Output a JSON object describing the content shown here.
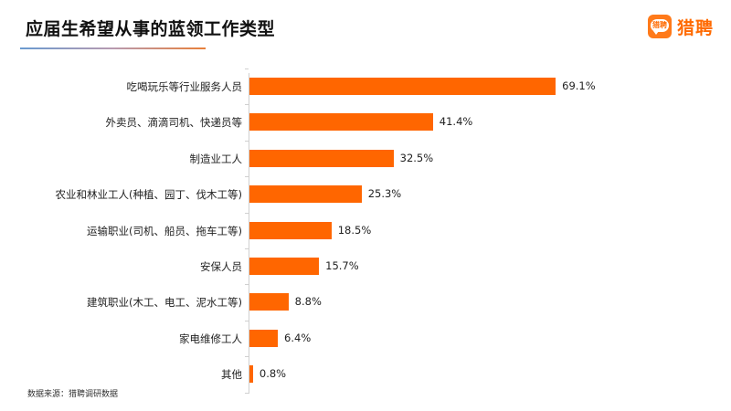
{
  "title": "应届生希望从事的蓝领工作类型",
  "logo": {
    "badge_text": "猎聘",
    "text": "猎聘",
    "icon": "liepin-logo-icon"
  },
  "source_note": "数据来源：猎聘调研数据",
  "colors": {
    "bar": "#ff6600",
    "logo": "#ff6a00",
    "underline_start": "#6a9ad0",
    "underline_end": "#e8803a"
  },
  "chart_data": {
    "type": "bar",
    "orientation": "horizontal",
    "title": "应届生希望从事的蓝领工作类型",
    "xlabel": "",
    "ylabel": "",
    "categories": [
      "吃喝玩乐等行业服务人员",
      "外卖员、滴滴司机、快递员等",
      "制造业工人",
      "农业和林业工人(种植、园丁、伐木工等)",
      "运输职业(司机、船员、拖车工等)",
      "安保人员",
      "建筑职业(木工、电工、泥水工等)",
      "家电维修工人",
      "其他"
    ],
    "values": [
      69.1,
      41.4,
      32.5,
      25.3,
      18.5,
      15.7,
      8.8,
      6.4,
      0.8
    ],
    "value_labels": [
      "69.1%",
      "41.4%",
      "32.5%",
      "25.3%",
      "18.5%",
      "15.7%",
      "8.8%",
      "6.4%",
      "0.8%"
    ],
    "unit": "%",
    "grid": false,
    "legend": null,
    "xlim": [
      0,
      75
    ],
    "source": "数据来源：猎聘调研数据"
  }
}
